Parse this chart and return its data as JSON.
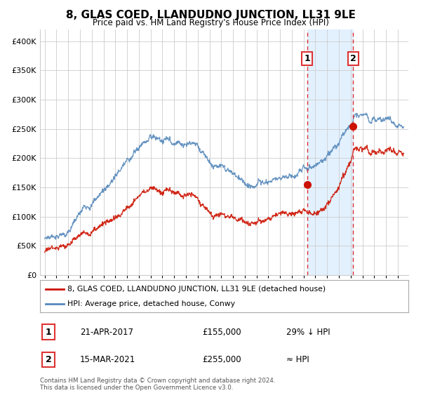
{
  "title": "8, GLAS COED, LLANDUDNO JUNCTION, LL31 9LE",
  "subtitle": "Price paid vs. HM Land Registry's House Price Index (HPI)",
  "footer": "Contains HM Land Registry data © Crown copyright and database right 2024.\nThis data is licensed under the Open Government Licence v3.0.",
  "legend_entry1": "8, GLAS COED, LLANDUDNO JUNCTION, LL31 9LE (detached house)",
  "legend_entry2": "HPI: Average price, detached house, Conwy",
  "table_row1": [
    "1",
    "21-APR-2017",
    "£155,000",
    "29% ↓ HPI"
  ],
  "table_row2": [
    "2",
    "15-MAR-2021",
    "£255,000",
    "≈ HPI"
  ],
  "sale1_year": 2017.3,
  "sale1_price": 155000,
  "sale2_year": 2021.2,
  "sale2_price": 255000,
  "hpi_color": "#5588bb",
  "price_color": "#cc1100",
  "vline_color": "#dd3333",
  "shade_color": "#ddeeff",
  "background_color": "#ffffff",
  "grid_color": "#cccccc",
  "ylim": [
    0,
    420000
  ],
  "yticks": [
    0,
    50000,
    100000,
    150000,
    200000,
    250000,
    300000,
    350000,
    400000
  ]
}
